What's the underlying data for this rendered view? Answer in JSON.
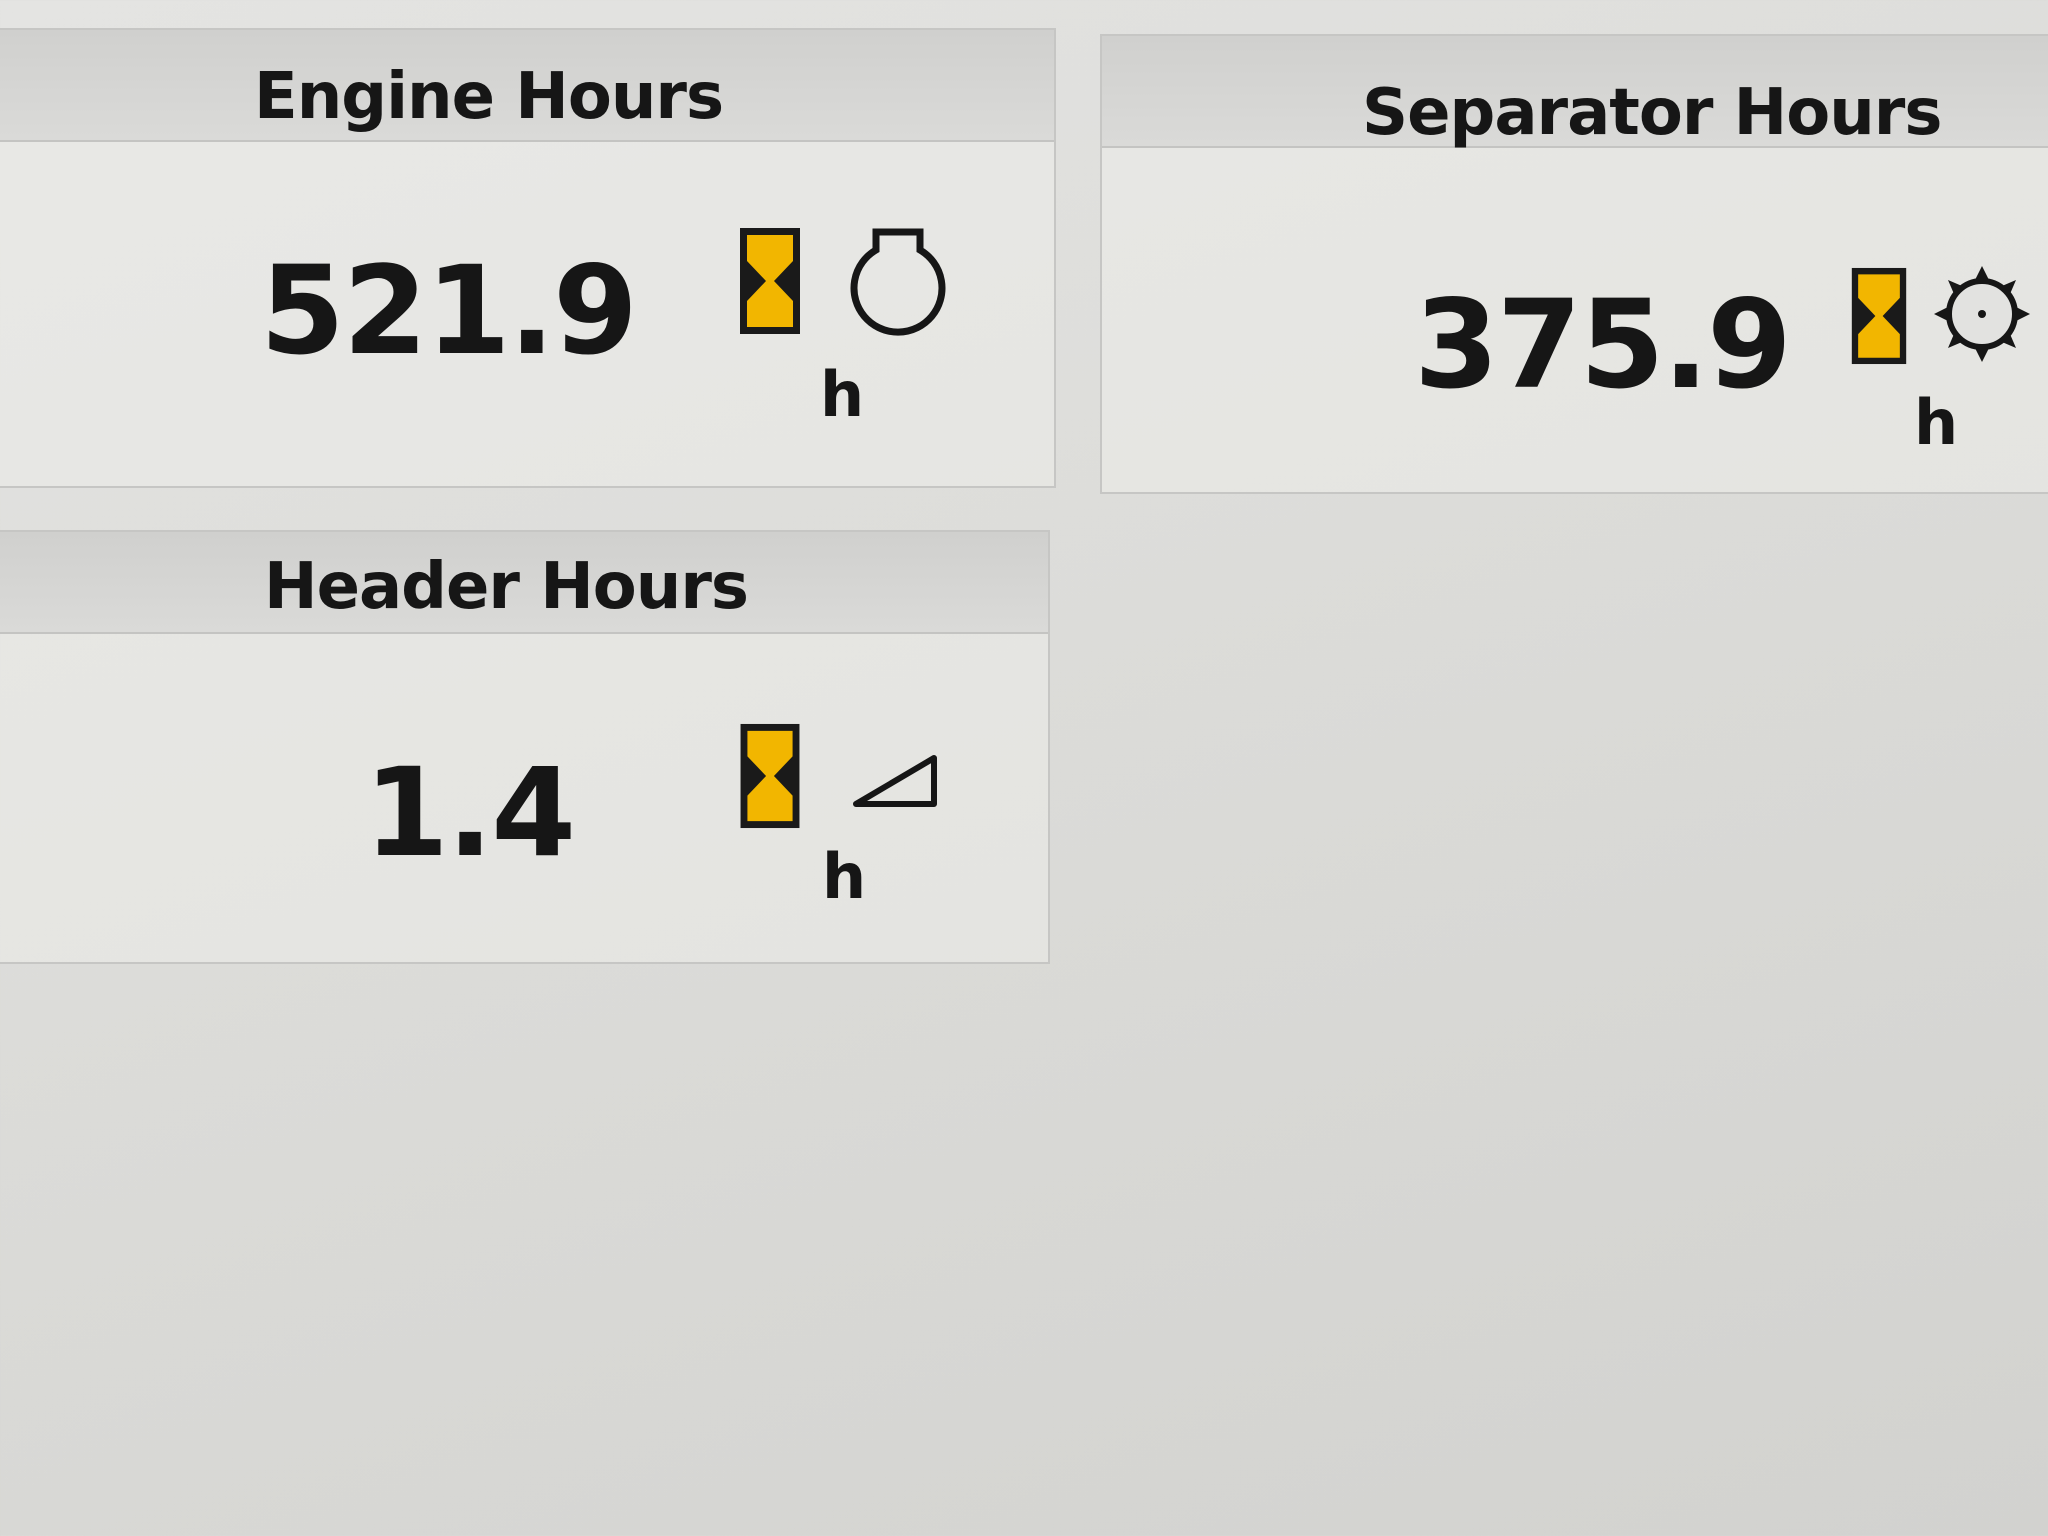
{
  "panels": {
    "engine": {
      "title": "Engine Hours",
      "value": "521.9",
      "unit": "h",
      "icons": [
        "hourglass-icon",
        "engine-icon"
      ]
    },
    "separator": {
      "title": "Separator Hours",
      "value": "375.9",
      "unit": "h",
      "icons": [
        "hourglass-icon",
        "separator-rotor-icon"
      ]
    },
    "header": {
      "title": "Header Hours",
      "value": "1.4",
      "unit": "h",
      "icons": [
        "hourglass-icon",
        "header-icon"
      ]
    }
  },
  "colors": {
    "hourglass_fill": "#f2b600",
    "text": "#161616"
  }
}
